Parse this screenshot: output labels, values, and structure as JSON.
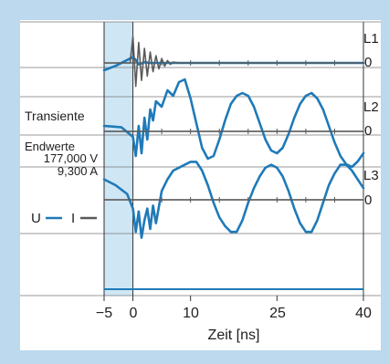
{
  "chart_data": {
    "type": "line",
    "xlabel": "Zeit [ns]",
    "xlim": [
      -5,
      40
    ],
    "x_ticks": [
      "−5",
      "0",
      "10",
      "25",
      "40"
    ],
    "x_tick_values": [
      -5,
      0,
      10,
      25,
      40
    ],
    "panels": [
      {
        "name": "L1",
        "zero_label": "0",
        "series": [
          {
            "quantity": "U",
            "color": "#1f7ab8",
            "points": [
              [
                -5,
                -0.5
              ],
              [
                -3,
                -0.2
              ],
              [
                -1,
                0.2
              ],
              [
                0,
                0.4
              ],
              [
                0.5,
                0.2
              ],
              [
                1,
                -0.1
              ],
              [
                2,
                0.05
              ],
              [
                3,
                0
              ],
              [
                5,
                0
              ],
              [
                10,
                0
              ],
              [
                20,
                0
              ],
              [
                40,
                0
              ]
            ]
          },
          {
            "quantity": "I",
            "color": "#5a5a5a",
            "points": [
              [
                -5,
                0
              ],
              [
                -0.5,
                0
              ],
              [
                0,
                1.8
              ],
              [
                0.5,
                -1.6
              ],
              [
                1,
                1.4
              ],
              [
                1.5,
                -1.2
              ],
              [
                2,
                1.0
              ],
              [
                2.5,
                -0.9
              ],
              [
                3,
                0.75
              ],
              [
                3.5,
                -0.6
              ],
              [
                4,
                0.5
              ],
              [
                4.5,
                -0.4
              ],
              [
                5,
                0.3
              ],
              [
                5.5,
                -0.22
              ],
              [
                6,
                0.16
              ],
              [
                6.5,
                -0.1
              ],
              [
                7,
                0.06
              ],
              [
                8,
                0
              ],
              [
                40,
                0
              ]
            ]
          }
        ]
      },
      {
        "name": "L2",
        "zero_label": "0",
        "series": [
          {
            "quantity": "U",
            "color": "#1f7ab8",
            "points": [
              [
                -5,
                0.2
              ],
              [
                -2,
                0.15
              ],
              [
                0,
                -0.2
              ],
              [
                0.5,
                -0.9
              ],
              [
                1,
                0.2
              ],
              [
                1.5,
                -0.8
              ],
              [
                2,
                0.5
              ],
              [
                2.5,
                -0.3
              ],
              [
                3,
                0.8
              ],
              [
                3.5,
                0.4
              ],
              [
                4,
                1.1
              ],
              [
                5,
                0.9
              ],
              [
                6,
                1.5
              ],
              [
                7,
                1.3
              ],
              [
                8,
                1.8
              ],
              [
                9,
                1.9
              ],
              [
                10,
                1.2
              ],
              [
                11,
                0.3
              ],
              [
                12,
                -0.6
              ],
              [
                13,
                -1.0
              ],
              [
                14,
                -0.9
              ],
              [
                15,
                -0.3
              ],
              [
                16,
                0.4
              ],
              [
                17,
                1.0
              ],
              [
                18,
                1.3
              ],
              [
                19,
                1.4
              ],
              [
                20,
                1.3
              ],
              [
                21,
                0.9
              ],
              [
                22,
                0.3
              ],
              [
                23,
                -0.3
              ],
              [
                24,
                -0.7
              ],
              [
                25,
                -0.8
              ],
              [
                26,
                -0.6
              ],
              [
                27,
                -0.1
              ],
              [
                28,
                0.5
              ],
              [
                29,
                1.0
              ],
              [
                30,
                1.3
              ],
              [
                31,
                1.4
              ],
              [
                32,
                1.2
              ],
              [
                33,
                0.8
              ],
              [
                34,
                0.2
              ],
              [
                35,
                -0.4
              ],
              [
                36,
                -0.9
              ],
              [
                37,
                -1.2
              ],
              [
                38,
                -1.3
              ],
              [
                39,
                -1.1
              ],
              [
                40,
                -0.8
              ]
            ]
          },
          {
            "quantity": "I",
            "color": "#5a5a5a",
            "points": [
              [
                -5,
                0
              ],
              [
                40,
                0
              ]
            ]
          }
        ]
      },
      {
        "name": "L3",
        "zero_label": "0",
        "series": [
          {
            "quantity": "U",
            "color": "#1f7ab8",
            "points": [
              [
                -5,
                0.7
              ],
              [
                -3,
                0.5
              ],
              [
                -1,
                0.2
              ],
              [
                0,
                -0.3
              ],
              [
                0.5,
                -1.1
              ],
              [
                1,
                -0.4
              ],
              [
                1.5,
                -1.3
              ],
              [
                2,
                -0.7
              ],
              [
                2.5,
                -0.3
              ],
              [
                3,
                -1.0
              ],
              [
                3.5,
                -0.2
              ],
              [
                4,
                -0.8
              ],
              [
                5,
                0.3
              ],
              [
                6,
                0.7
              ],
              [
                7,
                1.0
              ],
              [
                8,
                1.1
              ],
              [
                9,
                1.2
              ],
              [
                10,
                1.3
              ],
              [
                11,
                1.3
              ],
              [
                12,
                1.0
              ],
              [
                13,
                0.5
              ],
              [
                14,
                -0.1
              ],
              [
                15,
                -0.6
              ],
              [
                16,
                -0.9
              ],
              [
                17,
                -1.1
              ],
              [
                18,
                -1.1
              ],
              [
                19,
                -0.7
              ],
              [
                20,
                -0.1
              ],
              [
                21,
                0.4
              ],
              [
                22,
                0.8
              ],
              [
                23,
                1.1
              ],
              [
                24,
                1.2
              ],
              [
                25,
                1.1
              ],
              [
                26,
                0.8
              ],
              [
                27,
                0.3
              ],
              [
                28,
                -0.3
              ],
              [
                29,
                -0.8
              ],
              [
                30,
                -1.1
              ],
              [
                31,
                -1.1
              ],
              [
                32,
                -0.7
              ],
              [
                33,
                -0.1
              ],
              [
                34,
                0.5
              ],
              [
                35,
                0.9
              ],
              [
                36,
                1.2
              ],
              [
                37,
                1.2
              ],
              [
                38,
                1.0
              ],
              [
                39,
                0.7
              ],
              [
                40,
                0.4
              ]
            ]
          },
          {
            "quantity": "I",
            "color": "#5a5a5a",
            "points": [
              [
                -5,
                0
              ],
              [
                40,
                0
              ]
            ]
          }
        ]
      }
    ],
    "left_labels": {
      "transient": "Transiente",
      "endwerte_title": "Endwerte",
      "endwerte_voltage": "177,000 V",
      "endwerte_current": "9,300 A"
    },
    "legend": {
      "u_label": "U",
      "i_label": "I",
      "u_color": "#1f7ab8",
      "i_color": "#5a5a5a"
    },
    "colors": {
      "frame_bg": "#bcd9ee",
      "plot_bg": "#ffffff",
      "shaded_region": "#cfe6f5",
      "grid": "#555555"
    }
  }
}
